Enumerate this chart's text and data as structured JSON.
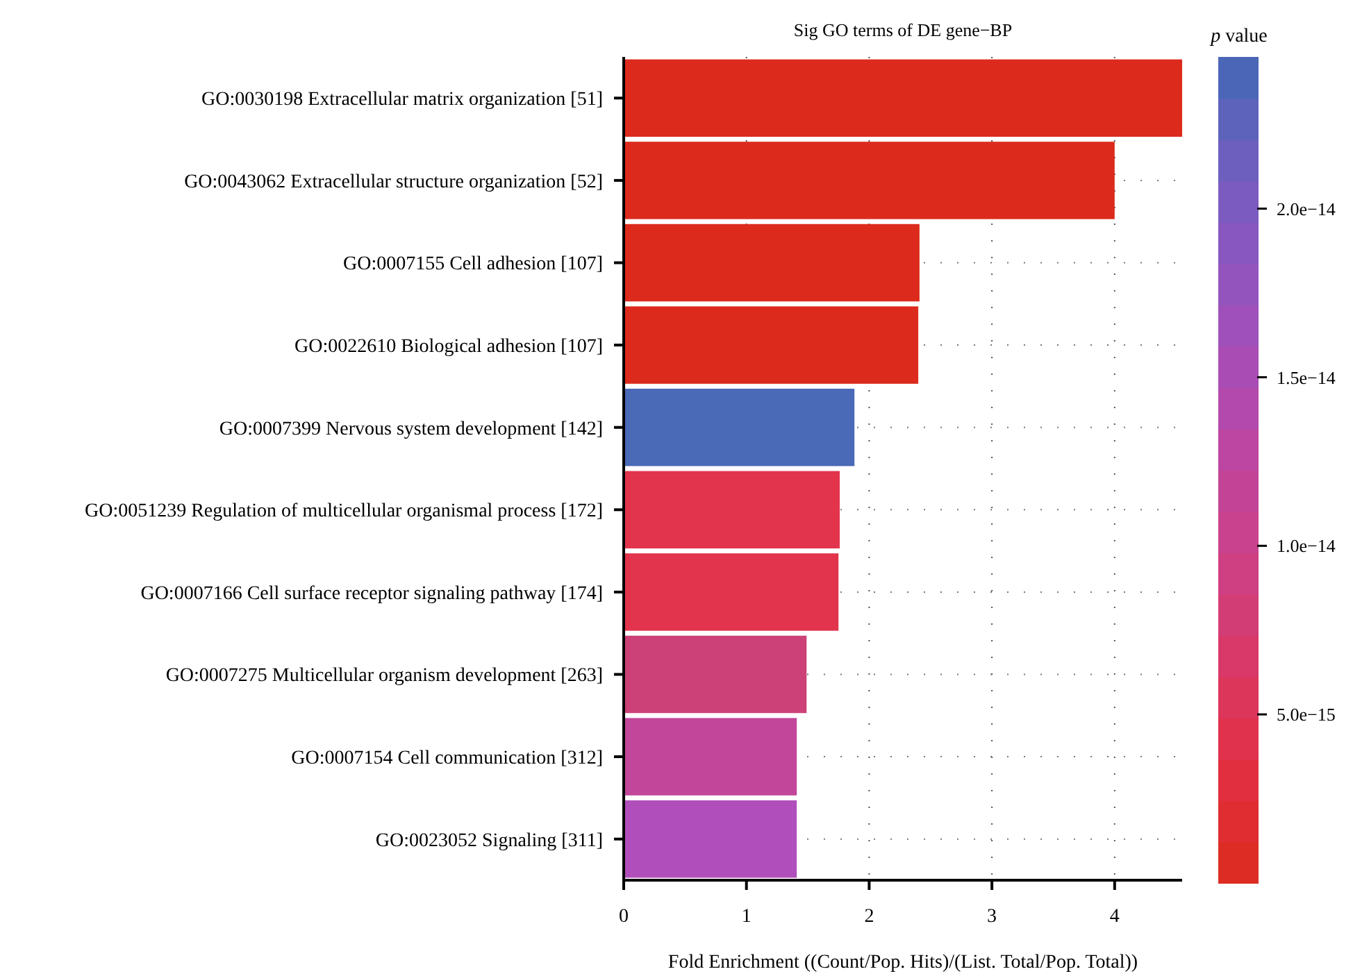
{
  "chart_data": {
    "type": "bar",
    "orientation": "horizontal",
    "title": "Sig GO terms of DE gene−BP",
    "xlabel": "Fold Enrichment ((Count/Pop. Hits)/(List. Total/Pop. Total))",
    "clabel": "p value",
    "categories": [
      "GO:0030198 Extracellular matrix organization [51]",
      "GO:0043062 Extracellular structure organization [52]",
      "GO:0007155 Cell adhesion [107]",
      "GO:0022610 Biological adhesion [107]",
      "GO:0007399 Nervous system development [142]",
      "GO:0051239 Regulation of multicellular organismal process [172]",
      "GO:0007166 Cell surface receptor signaling pathway [174]",
      "GO:0007275 Multicellular organism development [263]",
      "GO:0007154 Cell communication [312]",
      "GO:0023052 Signaling [311]"
    ],
    "values": [
      4.55,
      4.0,
      2.41,
      2.4,
      1.88,
      1.76,
      1.75,
      1.49,
      1.41,
      1.41
    ],
    "colors": [
      "#dc2b1c",
      "#dc2b1c",
      "#dc2b1c",
      "#dc2b1c",
      "#4a69b6",
      "#e2344d",
      "#e2344d",
      "#cc4178",
      "#c2479a",
      "#b04fbb"
    ],
    "xlim": [
      0,
      4.55
    ],
    "xticks": [
      0,
      1,
      2,
      3,
      4
    ],
    "grid": true,
    "clim": [
      0,
      2.45e-14
    ],
    "cticks": [
      {
        "value": 5e-15,
        "label": "5.0e−15"
      },
      {
        "value": 1e-14,
        "label": "1.0e−14"
      },
      {
        "value": 1.5e-14,
        "label": "1.5e−14"
      },
      {
        "value": 2e-14,
        "label": "2.0e−14"
      }
    ]
  }
}
